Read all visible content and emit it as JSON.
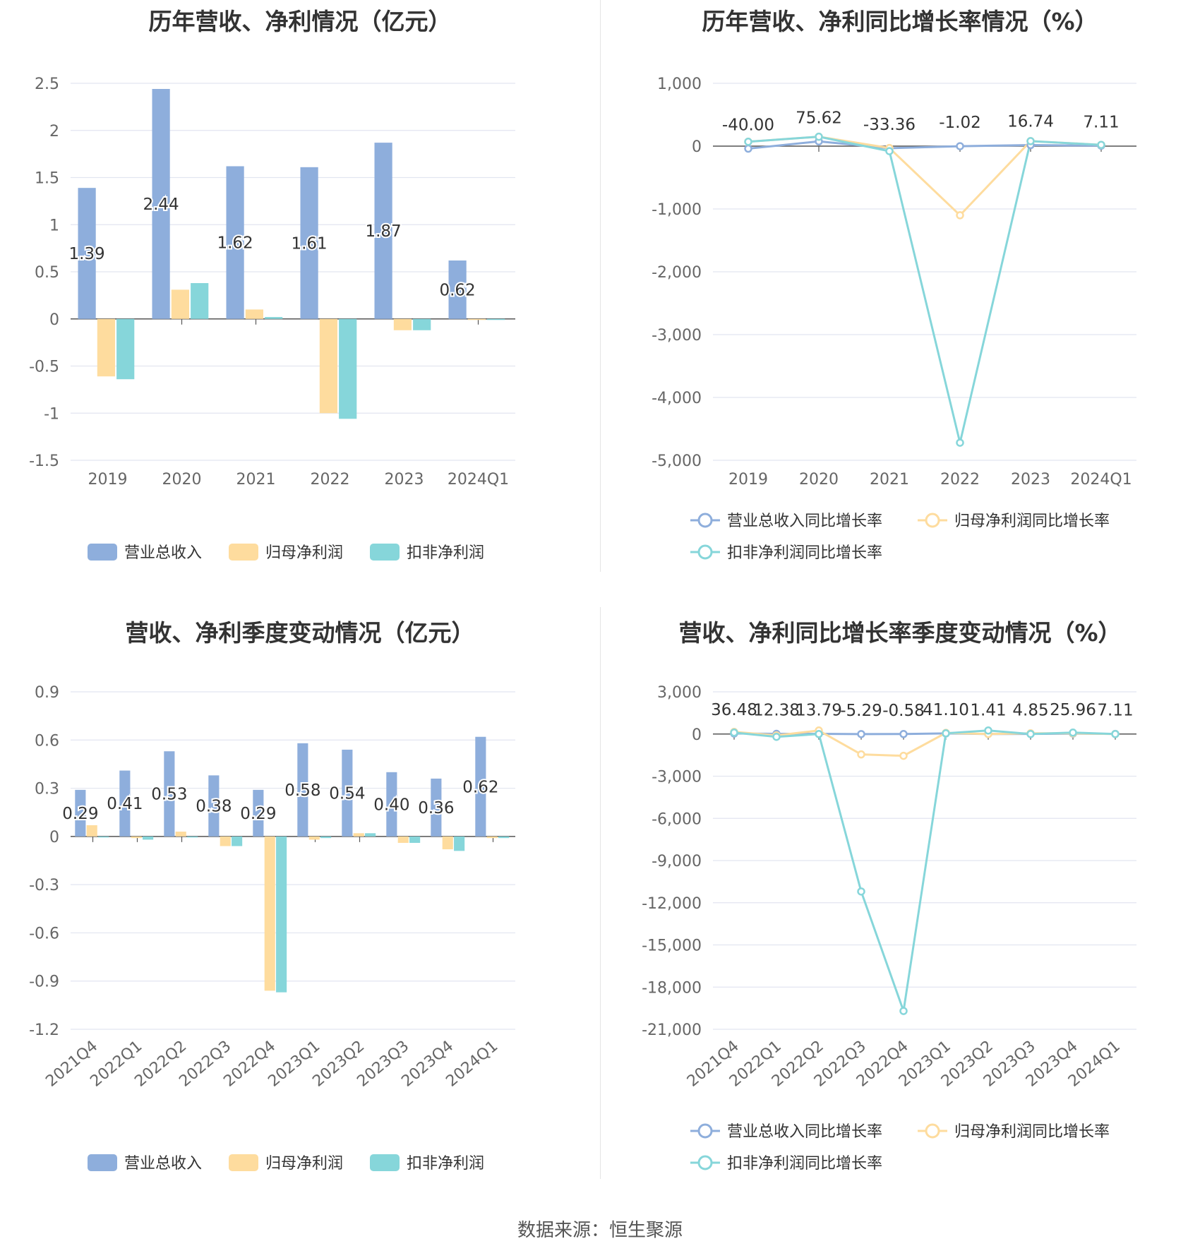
{
  "source": "数据来源：恒生聚源",
  "colors": {
    "revenue": "#8eaedc",
    "net_profit": "#fedc9e",
    "deducted_profit": "#86d6da",
    "grid": "#e2e5f0",
    "axis": "#555555"
  },
  "chart_data": [
    {
      "type": "bar",
      "title": "历年营收、净利情况（亿元）",
      "categories": [
        "2019",
        "2020",
        "2021",
        "2022",
        "2023",
        "2024Q1"
      ],
      "series": [
        {
          "name": "营业总收入",
          "values": [
            1.39,
            2.44,
            1.62,
            1.61,
            1.87,
            0.62
          ]
        },
        {
          "name": "归母净利润",
          "values": [
            -0.61,
            0.31,
            0.1,
            -1.0,
            -0.12,
            -0.01
          ]
        },
        {
          "name": "扣非净利润",
          "values": [
            -0.64,
            0.38,
            0.02,
            -1.06,
            -0.12,
            -0.01
          ]
        }
      ],
      "data_labels": [
        "1.39",
        "2.44",
        "1.62",
        "1.61",
        "1.87",
        "0.62"
      ],
      "ylim": [
        -1.5,
        2.5
      ],
      "yticks": [
        2.5,
        2,
        1.5,
        1,
        0.5,
        0,
        -0.5,
        -1,
        -1.5
      ],
      "ytick_labels": [
        "2.5",
        "2",
        "1.5",
        "1",
        "0.5",
        "0",
        "-0.5",
        "-1",
        "-1.5"
      ],
      "grid": true,
      "legend": "bottom"
    },
    {
      "type": "line",
      "title": "历年营收、净利同比增长率情况（%）",
      "categories": [
        "2019",
        "2020",
        "2021",
        "2022",
        "2023",
        "2024Q1"
      ],
      "series": [
        {
          "name": "营业总收入同比增长率",
          "values": [
            -40.0,
            75.62,
            -33.36,
            -1.02,
            16.74,
            7.11
          ]
        },
        {
          "name": "归母净利润同比增长率",
          "values": [
            70,
            150,
            -30,
            -1100,
            80,
            20
          ]
        },
        {
          "name": "扣非净利润同比增长率",
          "values": [
            70,
            150,
            -80,
            -4720,
            80,
            20
          ]
        }
      ],
      "data_labels": [
        "-40.00",
        "75.62",
        "-33.36",
        "-1.02",
        "16.74",
        "7.11"
      ],
      "ylim": [
        -5000,
        1000
      ],
      "yticks": [
        1000,
        0,
        -1000,
        -2000,
        -3000,
        -4000,
        -5000
      ],
      "ytick_labels": [
        "1,000",
        "0",
        "-1,000",
        "-2,000",
        "-3,000",
        "-4,000",
        "-5,000"
      ],
      "grid": true,
      "legend": "bottom"
    },
    {
      "type": "bar",
      "title": "营收、净利季度变动情况（亿元）",
      "categories": [
        "2021Q4",
        "2022Q1",
        "2022Q2",
        "2022Q3",
        "2022Q4",
        "2023Q1",
        "2023Q2",
        "2023Q3",
        "2023Q4",
        "2024Q1"
      ],
      "series": [
        {
          "name": "营业总收入",
          "values": [
            0.29,
            0.41,
            0.53,
            0.38,
            0.29,
            0.58,
            0.54,
            0.4,
            0.36,
            0.62
          ]
        },
        {
          "name": "归母净利润",
          "values": [
            0.07,
            -0.01,
            0.03,
            -0.06,
            -0.96,
            -0.02,
            0.02,
            -0.04,
            -0.08,
            -0.01
          ]
        },
        {
          "name": "扣非净利润",
          "values": [
            0.0,
            -0.02,
            0.0,
            -0.06,
            -0.97,
            -0.01,
            0.02,
            -0.04,
            -0.09,
            -0.01
          ]
        }
      ],
      "data_labels": [
        "0.29",
        "0.41",
        "0.53",
        "0.38",
        "0.29",
        "0.58",
        "0.54",
        "0.40",
        "0.36",
        "0.62"
      ],
      "ylim": [
        -1.2,
        0.9
      ],
      "yticks": [
        0.9,
        0.6,
        0.3,
        0,
        -0.3,
        -0.6,
        -0.9,
        -1.2
      ],
      "ytick_labels": [
        "0.9",
        "0.6",
        "0.3",
        "0",
        "-0.3",
        "-0.6",
        "-0.9",
        "-1.2"
      ],
      "grid": true,
      "legend": "bottom"
    },
    {
      "type": "line",
      "title": "营收、净利同比增长率季度变动情况（%）",
      "categories": [
        "2021Q4",
        "2022Q1",
        "2022Q2",
        "2022Q3",
        "2022Q4",
        "2023Q1",
        "2023Q2",
        "2023Q3",
        "2023Q4",
        "2024Q1"
      ],
      "series": [
        {
          "name": "营业总收入同比增长率",
          "values": [
            36.48,
            12.38,
            13.79,
            -5.29,
            -0.58,
            41.1,
            1.41,
            4.85,
            25.96,
            7.11
          ]
        },
        {
          "name": "归母净利润同比增长率",
          "values": [
            150,
            -100,
            250,
            -1450,
            -1550,
            80,
            0,
            50,
            50,
            0
          ]
        },
        {
          "name": "扣非净利润同比增长率",
          "values": [
            100,
            -200,
            0,
            -11200,
            -19700,
            50,
            250,
            0,
            100,
            0
          ]
        }
      ],
      "data_labels": [
        "36.48",
        "12.38",
        "13.79",
        "-5.29",
        "-0.58",
        "41.10",
        "1.41",
        "4.85",
        "25.96",
        "7.11"
      ],
      "ylim": [
        -21000,
        3000
      ],
      "yticks": [
        3000,
        0,
        -3000,
        -6000,
        -9000,
        -12000,
        -15000,
        -18000,
        -21000
      ],
      "ytick_labels": [
        "3,000",
        "0",
        "-3,000",
        "-6,000",
        "-9,000",
        "-12,000",
        "-15,000",
        "-18,000",
        "-21,000"
      ],
      "grid": true,
      "legend": "bottom"
    }
  ]
}
